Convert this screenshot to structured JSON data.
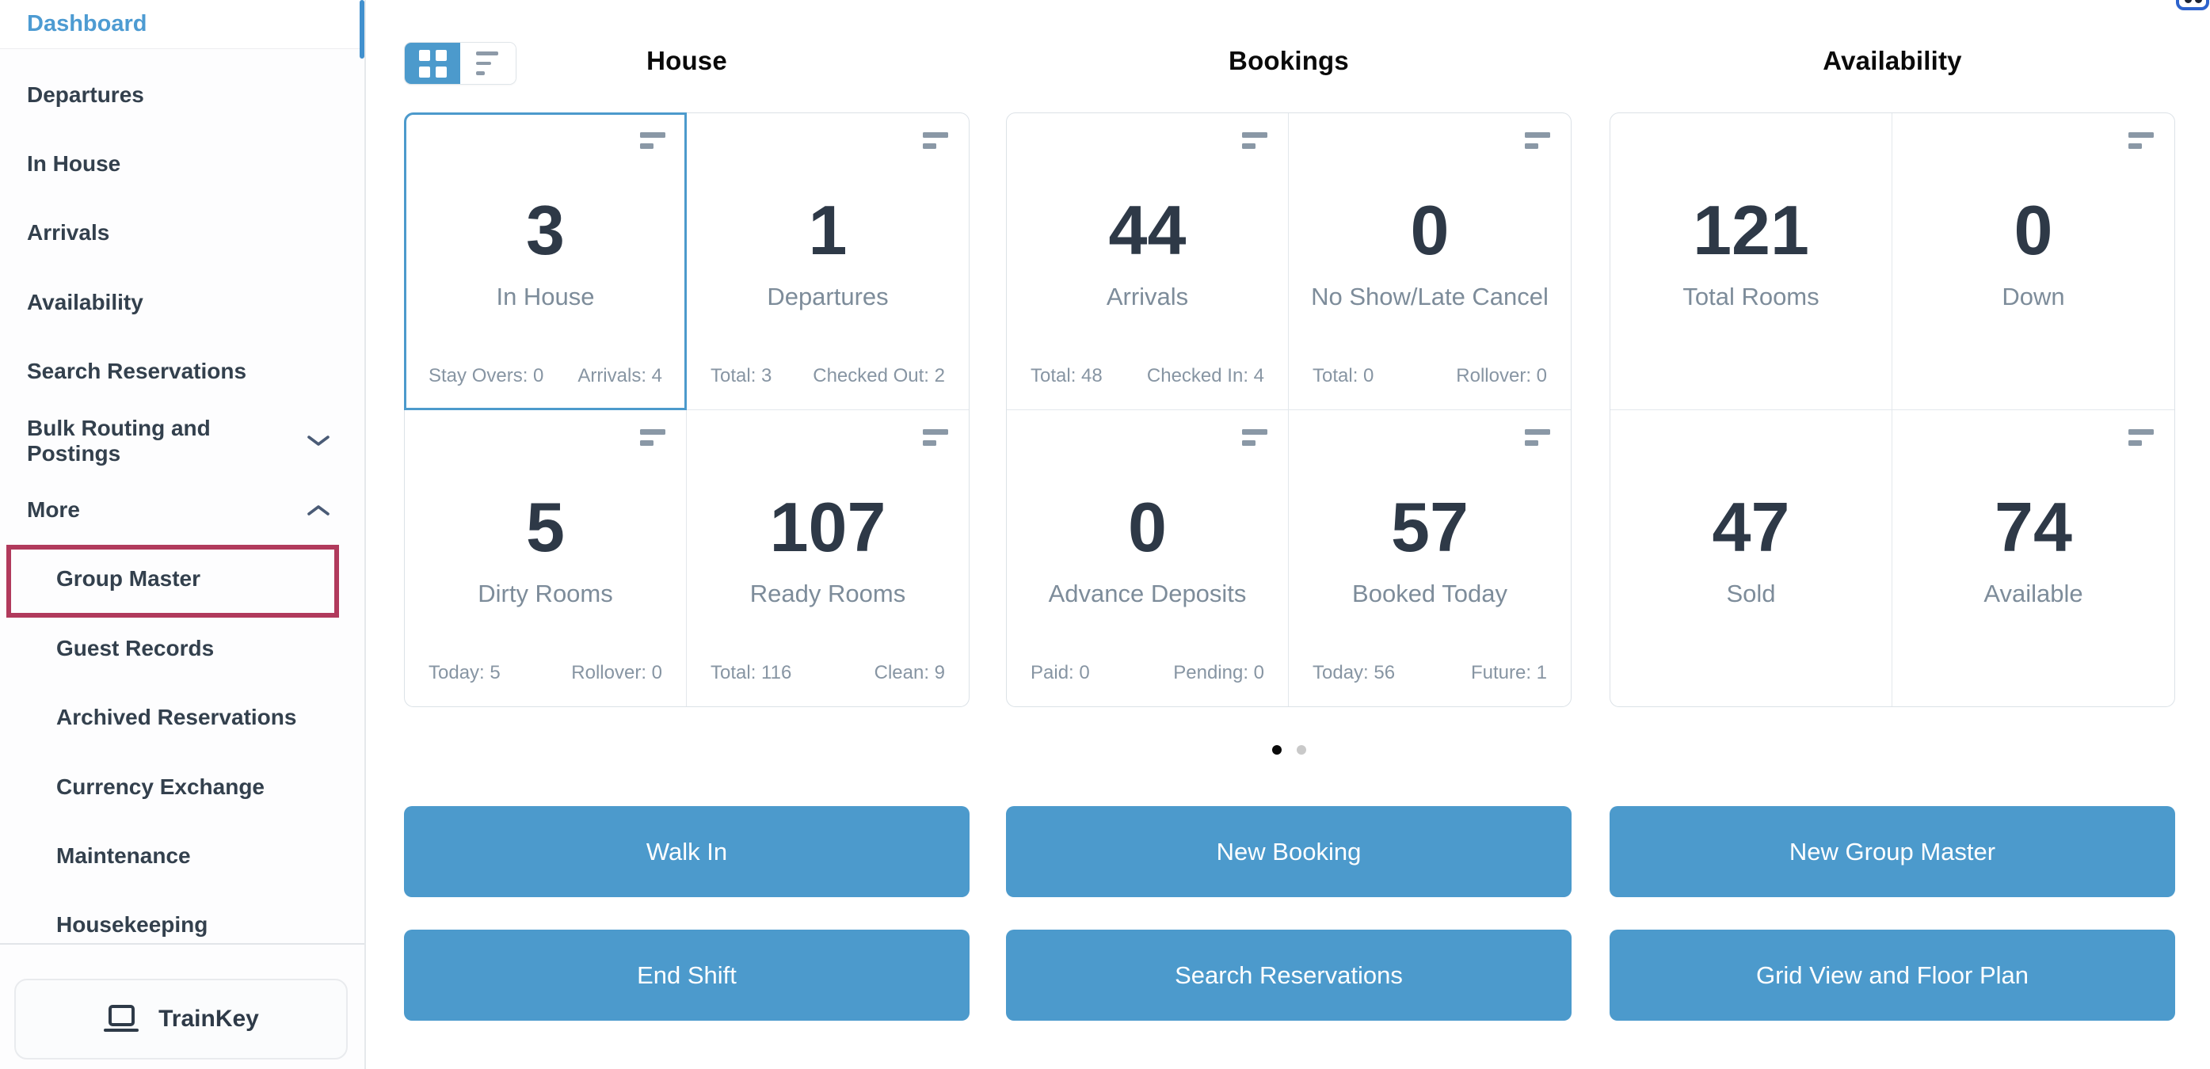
{
  "sidebar": {
    "dashboard_label": "Dashboard",
    "active_item": "Dashboard",
    "items": [
      {
        "label": "Departures"
      },
      {
        "label": "In House"
      },
      {
        "label": "Arrivals"
      },
      {
        "label": "Availability"
      },
      {
        "label": "Search Reservations"
      },
      {
        "label": "Bulk Routing and Postings",
        "chevron": "down"
      },
      {
        "label": "More",
        "chevron": "up"
      },
      {
        "label": "Group Master",
        "indent": true,
        "highlighted": true
      },
      {
        "label": "Guest Records",
        "indent": true
      },
      {
        "label": "Archived Reservations",
        "indent": true
      },
      {
        "label": "Currency Exchange",
        "indent": true
      },
      {
        "label": "Maintenance",
        "indent": true
      },
      {
        "label": "Housekeeping",
        "indent": true
      }
    ],
    "trainkey": {
      "label": "TrainKey",
      "icon": "laptop-icon"
    }
  },
  "view_toggle": {
    "options": [
      {
        "icon": "grid-view-icon",
        "active": true
      },
      {
        "icon": "list-view-icon",
        "active": false
      }
    ]
  },
  "sections": [
    {
      "title": "House",
      "cards": [
        {
          "value": "3",
          "label": "In House",
          "stat_left": "Stay Overs: 0",
          "stat_right": "Arrivals: 4",
          "menu_icon": true,
          "selected": true
        },
        {
          "value": "1",
          "label": "Departures",
          "stat_left": "Total: 3",
          "stat_right": "Checked Out: 2",
          "menu_icon": true
        },
        {
          "value": "5",
          "label": "Dirty Rooms",
          "stat_left": "Today: 5",
          "stat_right": "Rollover: 0",
          "menu_icon": true
        },
        {
          "value": "107",
          "label": "Ready Rooms",
          "stat_left": "Total: 116",
          "stat_right": "Clean: 9",
          "menu_icon": true
        }
      ],
      "buttons": [
        "Walk In",
        "End Shift"
      ]
    },
    {
      "title": "Bookings",
      "cards": [
        {
          "value": "44",
          "label": "Arrivals",
          "stat_left": "Total: 48",
          "stat_right": "Checked In: 4",
          "menu_icon": true
        },
        {
          "value": "0",
          "label": "No Show/Late Cancel",
          "stat_left": "Total: 0",
          "stat_right": "Rollover: 0",
          "menu_icon": true
        },
        {
          "value": "0",
          "label": "Advance Deposits",
          "stat_left": "Paid: 0",
          "stat_right": "Pending: 0",
          "menu_icon": true
        },
        {
          "value": "57",
          "label": "Booked Today",
          "stat_left": "Today: 56",
          "stat_right": "Future: 1",
          "menu_icon": true
        }
      ],
      "buttons": [
        "New Booking",
        "Search Reservations"
      ]
    },
    {
      "title": "Availability",
      "cards": [
        {
          "value": "121",
          "label": "Total Rooms",
          "menu_icon": false
        },
        {
          "value": "0",
          "label": "Down",
          "menu_icon": true
        },
        {
          "value": "47",
          "label": "Sold",
          "menu_icon": false
        },
        {
          "value": "74",
          "label": "Available",
          "menu_icon": true
        }
      ],
      "buttons": [
        "New Group Master",
        "Grid View and Floor Plan"
      ]
    }
  ],
  "pagination": {
    "dots": [
      {
        "active": true
      },
      {
        "active": false
      }
    ]
  },
  "colors": {
    "accent": "#4c9acc",
    "link_blue": "#4d9bd2",
    "scroll_blue": "#4190ce",
    "annotation_red": "#b13a5c",
    "num_dark": "#2e3947",
    "label_gray": "#7d8c9a",
    "stat_gray": "#8795a3"
  }
}
